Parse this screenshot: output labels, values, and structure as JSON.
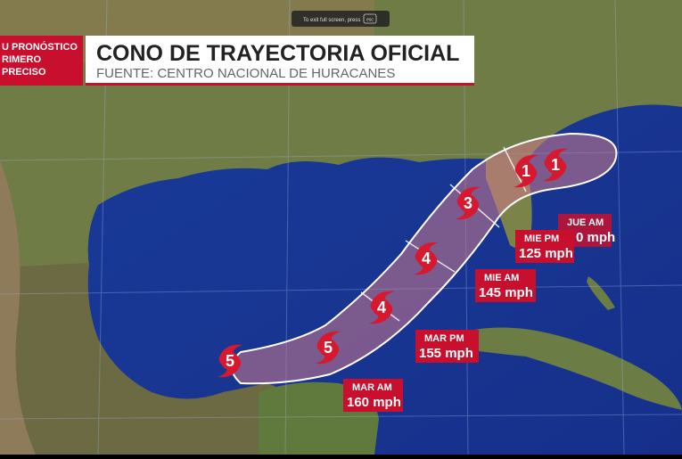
{
  "fullscreen_notice": {
    "text": "To exit full screen, press",
    "key": "esc"
  },
  "badge": {
    "lines": [
      "U PRONÓSTICO",
      "RIMERO",
      "PRECISO"
    ]
  },
  "header": {
    "title": "CONO DE TRAYECTORIA OFICIAL",
    "subtitle": "FUENTE: CENTRO NACIONAL DE HURACANES"
  },
  "storm_markers": [
    5,
    5,
    4,
    4,
    3,
    1,
    1
  ],
  "forecast_labels": [
    {
      "time": "MAR AM",
      "wind": "160 mph"
    },
    {
      "time": "MAR PM",
      "wind": "155 mph"
    },
    {
      "time": "MIE AM",
      "wind": "145 mph"
    },
    {
      "time": "MIE PM",
      "wind": "125 mph"
    },
    {
      "time": "JUE AM",
      "wind": "0 mph"
    }
  ]
}
